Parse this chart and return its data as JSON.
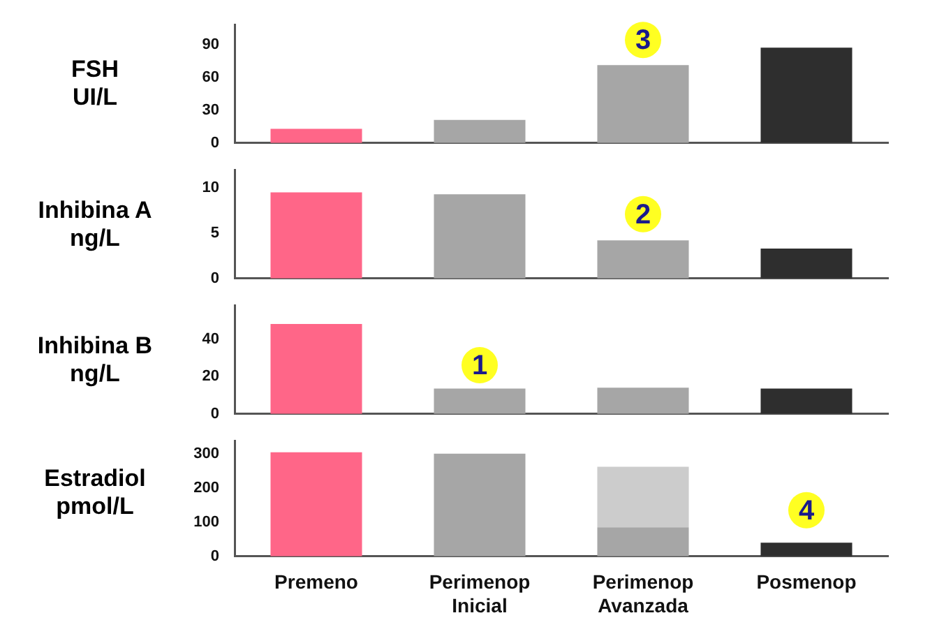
{
  "chart_data": [
    {
      "type": "bar",
      "ylabel": "FSH\nUI/L",
      "categories": [
        "Premeno",
        "Perimenop Inicial",
        "Perimenop Avanzada",
        "Posmenop"
      ],
      "tick_labels": "y",
      "ylim": [
        0,
        108
      ],
      "yticks": [
        0,
        30,
        60,
        90
      ],
      "series": [
        {
          "values": [
            13,
            21,
            71,
            87
          ],
          "colors": [
            "#ff6688",
            "#a6a6a6",
            "#a6a6a6",
            "#2e2e2e"
          ]
        }
      ],
      "annotations": [
        {
          "text": "3",
          "x": "Perimenop Avanzada",
          "y": 94
        }
      ]
    },
    {
      "type": "bar",
      "ylabel": "Inhibina A\nng/L",
      "categories": [
        "Premeno",
        "Perimenop Inicial",
        "Perimenop Avanzada",
        "Posmenop"
      ],
      "tick_labels": "y",
      "ylim": [
        0,
        12
      ],
      "yticks": [
        0,
        5,
        10
      ],
      "series": [
        {
          "values": [
            9.5,
            9.3,
            4.2,
            3.3
          ],
          "colors": [
            "#ff6688",
            "#a6a6a6",
            "#a6a6a6",
            "#2e2e2e"
          ]
        }
      ],
      "annotations": [
        {
          "text": "2",
          "x": "Perimenop Avanzada",
          "y": 7.1
        }
      ]
    },
    {
      "type": "bar",
      "ylabel": "Inhibina B\nng/L",
      "categories": [
        "Premeno",
        "Perimenop Inicial",
        "Perimenop Avanzada",
        "Posmenop"
      ],
      "tick_labels": "y",
      "ylim": [
        0,
        58
      ],
      "yticks": [
        0,
        20,
        40
      ],
      "series": [
        {
          "values": [
            48,
            13.5,
            14,
            13.5
          ],
          "colors": [
            "#ff6688",
            "#a6a6a6",
            "#a6a6a6",
            "#2e2e2e"
          ]
        }
      ],
      "annotations": [
        {
          "text": "1",
          "x": "Perimenop Inicial",
          "y": 26
        }
      ]
    },
    {
      "type": "bar",
      "ylabel": "Estradiol\npmol/L",
      "categories": [
        "Premeno",
        "Perimenop Inicial",
        "Perimenop Avanzada",
        "Posmenop"
      ],
      "ylim": [
        0,
        338
      ],
      "yticks": [
        0,
        100,
        200,
        300
      ],
      "stacked": true,
      "series": [
        {
          "values": [
            304,
            300,
            85,
            40
          ],
          "colors": [
            "#ff6688",
            "#a6a6a6",
            "#a6a6a6",
            "#2e2e2e"
          ]
        },
        {
          "values": [
            null,
            null,
            177,
            null
          ],
          "colors": [
            "#cccccc",
            "#cccccc",
            "#cccccc",
            "#cccccc"
          ]
        }
      ],
      "annotations": [
        {
          "text": "4",
          "x": "Posmenop",
          "y": 135
        }
      ]
    }
  ]
}
